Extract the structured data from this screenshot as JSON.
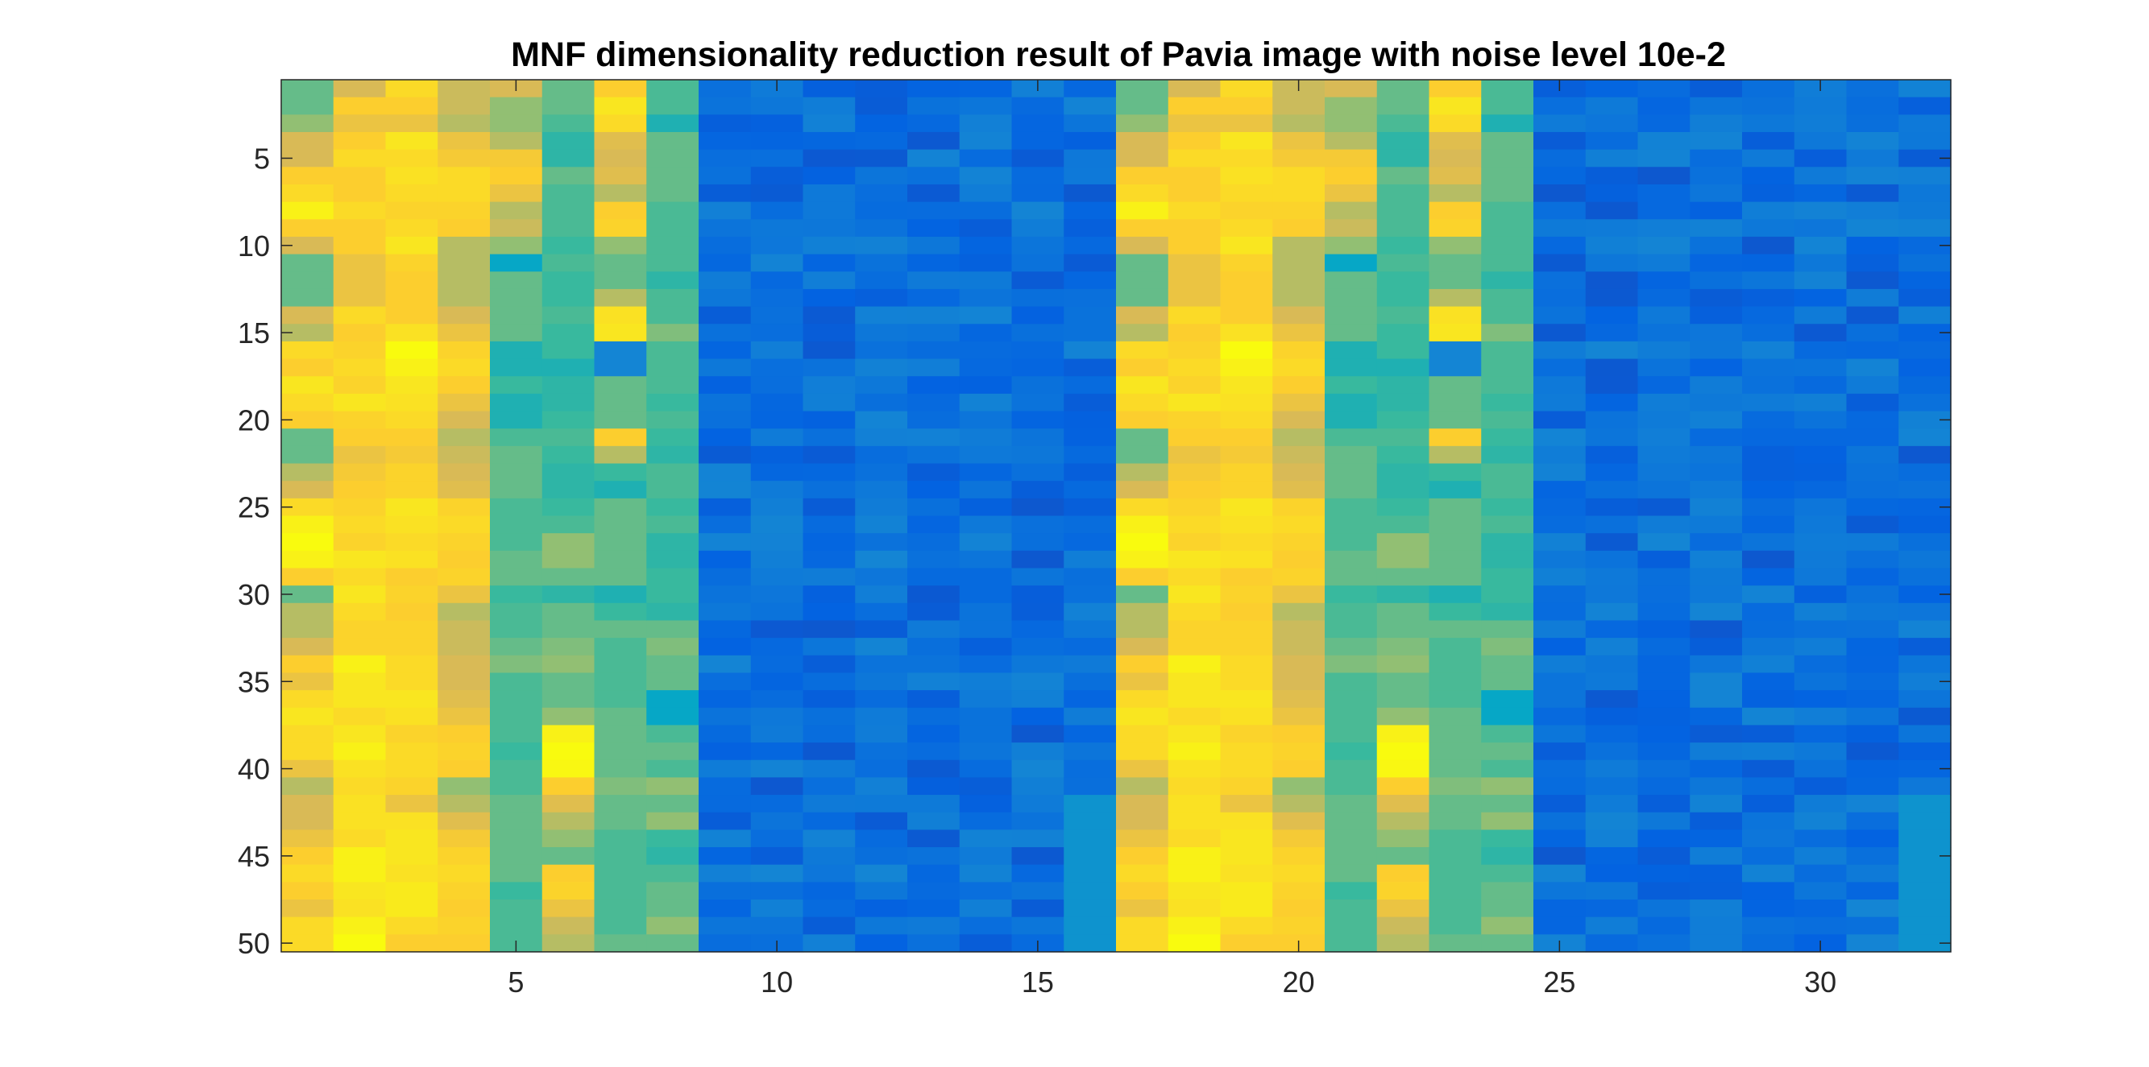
{
  "chart_data": {
    "type": "heatmap",
    "title": "MNF dimensionality reduction result of Pavia image with noise level 10e-2",
    "xlabel": "",
    "ylabel": "",
    "x_range": [
      1,
      32
    ],
    "y_range": [
      1,
      50
    ],
    "xlim": [
      0.5,
      32.5
    ],
    "ylim": [
      0.5,
      50.5
    ],
    "y_reversed": true,
    "x_ticks": [
      5,
      10,
      15,
      20,
      25,
      30
    ],
    "y_ticks": [
      5,
      10,
      15,
      20,
      25,
      30,
      35,
      40,
      45,
      50
    ],
    "grid": false,
    "colorbar": false,
    "colormap": "parula",
    "clim": [
      0,
      1
    ],
    "colormap_stops": [
      [
        0.0,
        "#352a87"
      ],
      [
        0.1,
        "#0363e1"
      ],
      [
        0.2,
        "#1485d4"
      ],
      [
        0.3,
        "#06a7c6"
      ],
      [
        0.4,
        "#38b99e"
      ],
      [
        0.5,
        "#92bf73"
      ],
      [
        0.6,
        "#d9ba56"
      ],
      [
        0.7,
        "#fcce2e"
      ],
      [
        0.8,
        "#f9e620"
      ],
      [
        0.9,
        "#f9fb0e"
      ],
      [
        1.0,
        "#f9fb0e"
      ]
    ],
    "column_profiles": {
      "1": [
        0.45,
        0.45,
        0.5,
        0.6,
        0.6,
        0.7,
        0.75,
        0.85,
        0.7,
        0.6,
        0.45,
        0.45,
        0.45,
        0.6,
        0.55,
        0.75,
        0.7,
        0.8,
        0.75,
        0.7,
        0.45,
        0.45,
        0.55,
        0.6,
        0.75,
        0.85,
        0.9,
        0.85,
        0.7,
        0.45,
        0.55,
        0.55,
        0.6,
        0.7,
        0.65,
        0.75,
        0.8,
        0.75,
        0.75,
        0.65,
        0.55,
        0.6,
        0.6,
        0.65,
        0.7,
        0.75,
        0.7,
        0.65,
        0.75,
        0.75
      ],
      "2": [
        0.6,
        0.7,
        0.65,
        0.7,
        0.75,
        0.7,
        0.7,
        0.75,
        0.7,
        0.7,
        0.65,
        0.65,
        0.65,
        0.75,
        0.7,
        0.72,
        0.75,
        0.72,
        0.8,
        0.72,
        0.7,
        0.65,
        0.68,
        0.7,
        0.72,
        0.75,
        0.72,
        0.8,
        0.75,
        0.8,
        0.75,
        0.72,
        0.72,
        0.85,
        0.8,
        0.8,
        0.75,
        0.8,
        0.85,
        0.78,
        0.75,
        0.78,
        0.78,
        0.75,
        0.85,
        0.85,
        0.8,
        0.78,
        0.85,
        0.9
      ],
      "3": [
        0.75,
        0.7,
        0.65,
        0.8,
        0.75,
        0.78,
        0.75,
        0.72,
        0.75,
        0.8,
        0.72,
        0.7,
        0.7,
        0.7,
        0.78,
        0.9,
        0.85,
        0.8,
        0.78,
        0.75,
        0.7,
        0.68,
        0.72,
        0.72,
        0.8,
        0.78,
        0.75,
        0.78,
        0.7,
        0.72,
        0.7,
        0.72,
        0.72,
        0.75,
        0.75,
        0.8,
        0.78,
        0.72,
        0.75,
        0.75,
        0.72,
        0.65,
        0.78,
        0.8,
        0.8,
        0.78,
        0.82,
        0.82,
        0.75,
        0.7
      ],
      "4": [
        0.58,
        0.58,
        0.55,
        0.65,
        0.68,
        0.75,
        0.75,
        0.72,
        0.7,
        0.55,
        0.55,
        0.55,
        0.55,
        0.6,
        0.65,
        0.72,
        0.75,
        0.7,
        0.65,
        0.6,
        0.55,
        0.58,
        0.6,
        0.62,
        0.72,
        0.75,
        0.72,
        0.7,
        0.72,
        0.65,
        0.55,
        0.58,
        0.58,
        0.6,
        0.6,
        0.62,
        0.65,
        0.7,
        0.72,
        0.7,
        0.5,
        0.55,
        0.62,
        0.68,
        0.72,
        0.75,
        0.72,
        0.7,
        0.72,
        0.7
      ],
      "5": [
        0.6,
        0.5,
        0.5,
        0.55,
        0.68,
        0.7,
        0.65,
        0.55,
        0.58,
        0.5,
        0.3,
        0.45,
        0.45,
        0.45,
        0.45,
        0.35,
        0.35,
        0.4,
        0.35,
        0.35,
        0.42,
        0.45,
        0.45,
        0.45,
        0.42,
        0.42,
        0.42,
        0.45,
        0.45,
        0.4,
        0.42,
        0.42,
        0.45,
        0.48,
        0.42,
        0.42,
        0.42,
        0.42,
        0.4,
        0.42,
        0.42,
        0.45,
        0.45,
        0.45,
        0.45,
        0.45,
        0.4,
        0.42,
        0.42,
        0.42
      ],
      "6": [
        0.45,
        0.45,
        0.42,
        0.38,
        0.38,
        0.45,
        0.42,
        0.42,
        0.42,
        0.4,
        0.42,
        0.4,
        0.4,
        0.42,
        0.4,
        0.4,
        0.35,
        0.38,
        0.38,
        0.4,
        0.42,
        0.4,
        0.38,
        0.38,
        0.4,
        0.42,
        0.5,
        0.5,
        0.45,
        0.38,
        0.45,
        0.45,
        0.48,
        0.5,
        0.45,
        0.45,
        0.5,
        0.85,
        0.9,
        0.88,
        0.7,
        0.62,
        0.55,
        0.5,
        0.45,
        0.7,
        0.72,
        0.65,
        0.58,
        0.55
      ],
      "7": [
        0.7,
        0.8,
        0.75,
        0.62,
        0.6,
        0.62,
        0.55,
        0.7,
        0.72,
        0.5,
        0.45,
        0.45,
        0.55,
        0.78,
        0.8,
        0.2,
        0.2,
        0.45,
        0.45,
        0.45,
        0.7,
        0.55,
        0.4,
        0.35,
        0.45,
        0.45,
        0.45,
        0.45,
        0.45,
        0.35,
        0.4,
        0.45,
        0.42,
        0.42,
        0.42,
        0.42,
        0.45,
        0.45,
        0.45,
        0.45,
        0.48,
        0.45,
        0.45,
        0.42,
        0.42,
        0.42,
        0.42,
        0.42,
        0.42,
        0.45
      ],
      "8": [
        0.42,
        0.42,
        0.35,
        0.45,
        0.45,
        0.45,
        0.45,
        0.42,
        0.42,
        0.42,
        0.42,
        0.38,
        0.42,
        0.42,
        0.48,
        0.42,
        0.42,
        0.42,
        0.4,
        0.42,
        0.4,
        0.38,
        0.42,
        0.42,
        0.4,
        0.42,
        0.38,
        0.38,
        0.4,
        0.4,
        0.38,
        0.45,
        0.48,
        0.45,
        0.45,
        0.3,
        0.3,
        0.42,
        0.45,
        0.42,
        0.5,
        0.45,
        0.5,
        0.4,
        0.38,
        0.42,
        0.45,
        0.45,
        0.5,
        0.45
      ]
    },
    "column_profile_note": "Columns 9-16 and 25-32 are low-valued (blue); columns 17-24 repeat columns 1-8."
  }
}
